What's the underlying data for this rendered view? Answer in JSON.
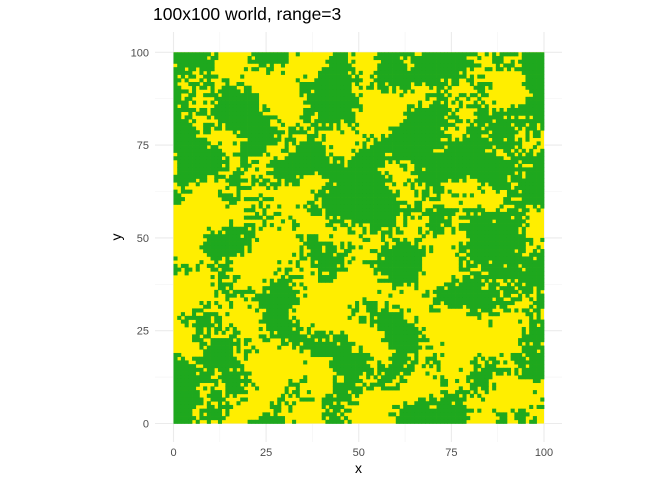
{
  "chart_data": {
    "type": "heatmap",
    "title": "100x100 world, range=3",
    "xlabel": "x",
    "ylabel": "y",
    "xlim": [
      0,
      100
    ],
    "ylim": [
      0,
      100
    ],
    "x_ticks": [
      0,
      25,
      50,
      75,
      100
    ],
    "y_ticks": [
      0,
      25,
      50,
      75,
      100
    ],
    "x_tick_labels": [
      "0",
      "25",
      "50",
      "75",
      "100"
    ],
    "y_tick_labels": [
      "0",
      "25",
      "50",
      "75",
      "100"
    ],
    "grid": true,
    "legend": "none",
    "grid_size": [
      100,
      100
    ],
    "cell_states": [
      "green",
      "yellow"
    ],
    "colors": {
      "green": "#1ea81e",
      "yellow": "#ffee00"
    },
    "pattern": "spatially autocorrelated two-state random field; cell states estimated from image, not individually readable"
  }
}
